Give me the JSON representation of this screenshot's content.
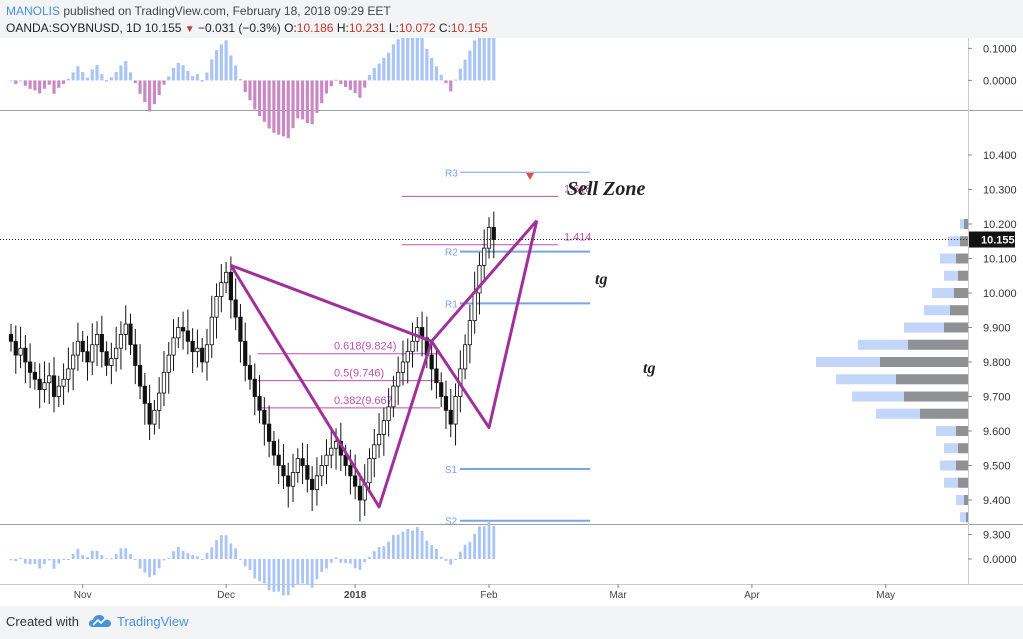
{
  "header": {
    "author": "MANOLIS",
    "published_text": "published on TradingView.com, February 18, 2018 09:29 EET",
    "symbol": "OANDA:SOYBNUSD, 1D",
    "last": "10.155",
    "change": "−0.031 (−0.3%)",
    "o_label": "O:",
    "o_value": "10.186",
    "h_label": "H:",
    "h_value": "10.231",
    "l_label": "L:",
    "l_value": "10.072",
    "c_label": "C:",
    "c_value": "10.155"
  },
  "footer": {
    "created_with": "Created with",
    "brand": "TradingView"
  },
  "annotations": {
    "sell_zone": "Sell Zone",
    "tg1": "tg",
    "tg2": "tg",
    "ext_1618": "1.618",
    "ext_1414": "1.414"
  },
  "colors": {
    "pattern": "#a0309a",
    "candle_up": "#ffffff",
    "candle_down": "#111111",
    "pivot": "#7aa3e8",
    "fib": "#c04db0",
    "hist_pos": "#a9c4f5",
    "hist_neg": "#c98ac4",
    "volume_profile": "#8a8a8a"
  },
  "chart_data": {
    "type": "candlestick",
    "symbol": "OANDA:SOYBNUSD",
    "timeframe": "1D",
    "ylim": [
      9.27,
      10.47
    ],
    "y_ticks": [
      "10.400",
      "10.300",
      "10.200",
      "10.100",
      "10.000",
      "9.900",
      "9.800",
      "9.700",
      "9.600",
      "9.500",
      "9.400",
      "9.300"
    ],
    "last_price_label": "10.155",
    "x_labels": [
      {
        "label": "Nov",
        "bar": 15
      },
      {
        "label": "Dec",
        "bar": 45
      },
      {
        "label": "2018",
        "bar": 72
      },
      {
        "label": "Feb",
        "bar": 100
      },
      {
        "label": "Mar",
        "bar": 127
      },
      {
        "label": "Apr",
        "bar": 155
      },
      {
        "label": "May",
        "bar": 183
      }
    ],
    "closes": [
      9.86,
      9.82,
      9.84,
      9.8,
      9.77,
      9.75,
      9.72,
      9.74,
      9.76,
      9.7,
      9.73,
      9.75,
      9.78,
      9.82,
      9.86,
      9.83,
      9.8,
      9.85,
      9.88,
      9.83,
      9.79,
      9.81,
      9.84,
      9.88,
      9.91,
      9.85,
      9.79,
      9.73,
      9.68,
      9.62,
      9.66,
      9.71,
      9.77,
      9.82,
      9.87,
      9.9,
      9.89,
      9.86,
      9.83,
      9.84,
      9.8,
      9.85,
      9.93,
      9.99,
      10.03,
      10.06,
      9.98,
      9.93,
      9.86,
      9.79,
      9.75,
      9.7,
      9.66,
      9.62,
      9.57,
      9.53,
      9.5,
      9.47,
      9.44,
      9.48,
      9.52,
      9.5,
      9.46,
      9.43,
      9.47,
      9.5,
      9.53,
      9.55,
      9.57,
      9.53,
      9.5,
      9.47,
      9.44,
      9.4,
      9.45,
      9.52,
      9.56,
      9.59,
      9.63,
      9.67,
      9.73,
      9.77,
      9.8,
      9.83,
      9.86,
      9.9,
      9.87,
      9.82,
      9.78,
      9.74,
      9.7,
      9.66,
      9.62,
      9.7,
      9.78,
      9.85,
      9.92,
      10.0,
      10.08,
      10.13,
      10.19,
      10.155
    ],
    "pattern_points": [
      {
        "bar": 46,
        "price": 10.08
      },
      {
        "bar": 77,
        "price": 9.38
      },
      {
        "bar": 88,
        "price": 9.86
      },
      {
        "bar": 100,
        "price": 9.61
      },
      {
        "bar": 110,
        "price": 10.21
      }
    ],
    "pattern_label": "",
    "fib_levels": [
      {
        "label": "0.618(9.824)",
        "price": 9.824
      },
      {
        "label": "0.5(9.746)",
        "price": 9.746
      },
      {
        "label": "0.382(9.667)",
        "price": 9.667
      }
    ],
    "extensions": [
      {
        "label": "1.618",
        "price": 10.28
      },
      {
        "label": "1.414",
        "price": 10.14
      }
    ],
    "pivots": [
      {
        "label": "R3",
        "price": 10.35
      },
      {
        "label": "R2",
        "price": 10.12
      },
      {
        "label": "R1",
        "price": 9.97
      },
      {
        "label": "S1",
        "price": 9.49
      },
      {
        "label": "S2",
        "price": 9.34
      }
    ],
    "volume_profile": [
      {
        "price": 10.2,
        "total": 0.04,
        "up": 0.02
      },
      {
        "price": 10.15,
        "total": 0.1,
        "up": 0.04
      },
      {
        "price": 10.1,
        "total": 0.14,
        "up": 0.06
      },
      {
        "price": 10.05,
        "total": 0.12,
        "up": 0.05
      },
      {
        "price": 10.0,
        "total": 0.18,
        "up": 0.07
      },
      {
        "price": 9.95,
        "total": 0.22,
        "up": 0.09
      },
      {
        "price": 9.9,
        "total": 0.32,
        "up": 0.12
      },
      {
        "price": 9.85,
        "total": 0.55,
        "up": 0.3
      },
      {
        "price": 9.8,
        "total": 0.76,
        "up": 0.44
      },
      {
        "price": 9.75,
        "total": 0.66,
        "up": 0.36
      },
      {
        "price": 9.7,
        "total": 0.58,
        "up": 0.32
      },
      {
        "price": 9.65,
        "total": 0.46,
        "up": 0.24
      },
      {
        "price": 9.6,
        "total": 0.16,
        "up": 0.06
      },
      {
        "price": 9.55,
        "total": 0.12,
        "up": 0.05
      },
      {
        "price": 9.5,
        "total": 0.14,
        "up": 0.06
      },
      {
        "price": 9.45,
        "total": 0.12,
        "up": 0.05
      },
      {
        "price": 9.4,
        "total": 0.06,
        "up": 0.02
      },
      {
        "price": 9.35,
        "total": 0.04,
        "up": 0.01
      }
    ],
    "upper_indicator": {
      "ticks": [
        "0.1000",
        "0.0000"
      ],
      "ylim": [
        -0.08,
        0.12
      ]
    },
    "lower_indicator": {
      "ticks": [
        "0.0000"
      ],
      "ylim": [
        -0.06,
        0.09
      ]
    }
  }
}
